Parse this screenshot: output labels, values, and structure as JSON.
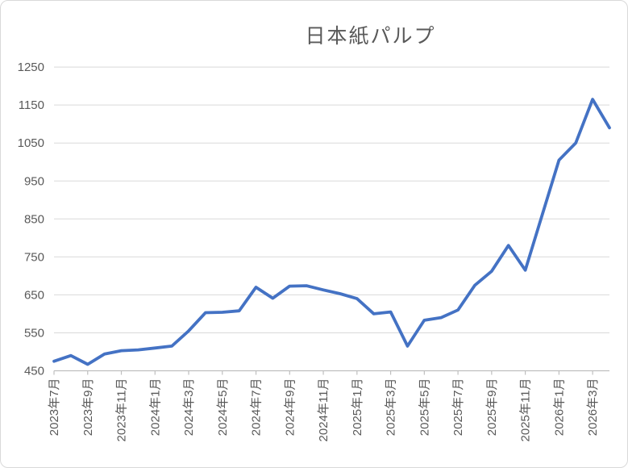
{
  "chart_data": {
    "type": "line",
    "title": "日本紙パルプ",
    "xlabel": "",
    "ylabel": "",
    "categories": [
      "2023年7月",
      "2023年8月",
      "2023年9月",
      "2023年10月",
      "2023年11月",
      "2023年12月",
      "2024年1月",
      "2024年2月",
      "2024年3月",
      "2024年4月",
      "2024年5月",
      "2024年6月",
      "2024年7月",
      "2024年8月",
      "2024年9月",
      "2024年10月",
      "2024年11月",
      "2024年12月",
      "2025年1月",
      "2025年2月",
      "2025年3月",
      "2025年4月",
      "2025年5月",
      "2025年6月",
      "2025年7月",
      "2025年8月",
      "2025年9月",
      "2025年10月",
      "2025年11月",
      "2025年12月",
      "2026年1月",
      "2026年2月",
      "2026年3月",
      "2026年4月"
    ],
    "values": [
      475,
      490,
      467,
      494,
      503,
      505,
      510,
      515,
      555,
      603,
      604,
      608,
      670,
      641,
      673,
      674,
      663,
      653,
      640,
      600,
      605,
      515,
      583,
      590,
      610,
      675,
      712,
      780,
      715,
      860,
      1005,
      1050,
      1165,
      1090
    ],
    "series_name": "日本紙パルプ",
    "ylim": [
      450,
      1250
    ],
    "ytick_step": 100,
    "ytick_labels": [
      "450",
      "550",
      "650",
      "750",
      "850",
      "950",
      "1050",
      "1150",
      "1250"
    ],
    "xtick_label_interval": 2,
    "xtick_labels": [
      "2023年7月",
      "2023年9月",
      "2023年11月",
      "2024年1月",
      "2024年3月",
      "2024年5月",
      "2024年7月",
      "2024年9月",
      "2024年11月",
      "2025年1月",
      "2025年3月",
      "2025年5月",
      "2025年7月",
      "2025年9月",
      "2025年11月",
      "2026年1月",
      "2026年3月"
    ],
    "grid": "horizontal",
    "legend": "none",
    "colors": {
      "series": "#4472C4",
      "gridline": "#d9d9d9",
      "axis_line": "#bfbfbf",
      "tick": "#bfbfbf",
      "label_text": "#595959",
      "title_text": "#595959",
      "background": "#ffffff",
      "border": "#d9d9d9"
    }
  }
}
